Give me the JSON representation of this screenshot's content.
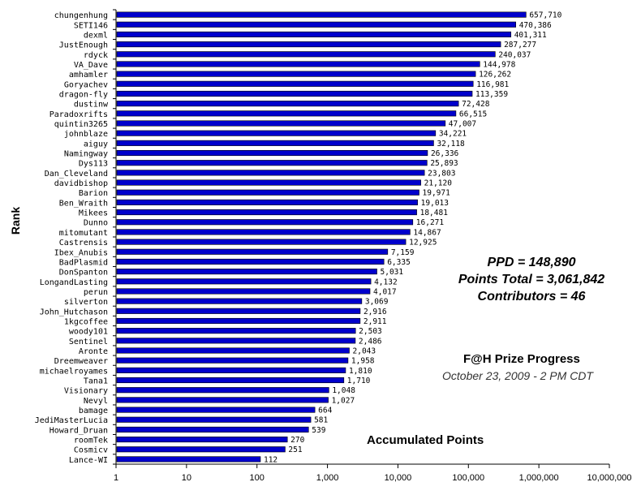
{
  "chart_data": {
    "type": "bar",
    "orientation": "horizontal",
    "x_scale": "log",
    "xlim": [
      1,
      10000000
    ],
    "x_ticks": [
      "1",
      "10",
      "100",
      "1,000",
      "10,000",
      "100,000",
      "1,000,000",
      "10,000,000"
    ],
    "ylabel": "Rank",
    "xlabel": "Accumulated Points",
    "bar_color": "#0000cc",
    "categories": [
      "chungenhung",
      "SETI146",
      "dexml",
      "JustEnough",
      "rdyck",
      "VA_Dave",
      "amhamler",
      "Goryachev",
      "dragon-fly",
      "dustinw",
      "Paradoxrifts",
      "quintin3265",
      "johnblaze",
      "aiguy",
      "Namingway",
      "Dys113",
      "Dan_Cleveland",
      "davidbishop",
      "Barion",
      "Ben_Wraith",
      "Mikees",
      "Dunno",
      "mitomutant",
      "Castrensis",
      "Ibex_Anubis",
      "BadPlasmid",
      "DonSpanton",
      "LongandLasting",
      "perun",
      "silverton",
      "John_Hutchason",
      "1kgcoffee",
      "woody101",
      "Sentinel",
      "Aronte",
      "Dreemweaver",
      "michaelroyames",
      "Tana1",
      "Visionary",
      "Nevyl",
      "bamage",
      "JediMasterLucia",
      "Howard_Druan",
      "roomTek",
      "Cosmicv",
      "Lance-WI"
    ],
    "values": [
      657710,
      470386,
      401311,
      287277,
      240037,
      144978,
      126262,
      116981,
      113359,
      72428,
      66515,
      47007,
      34221,
      32118,
      26336,
      25893,
      23803,
      21120,
      19971,
      19013,
      18481,
      16271,
      14867,
      12925,
      7159,
      6335,
      5031,
      4132,
      4017,
      3069,
      2916,
      2911,
      2503,
      2486,
      2043,
      1958,
      1810,
      1710,
      1048,
      1027,
      664,
      581,
      539,
      270,
      251,
      112
    ],
    "value_labels": [
      "657,710",
      "470,386",
      "401,311",
      "287,277",
      "240,037",
      "144,978",
      "126,262",
      "116,981",
      "113,359",
      "72,428",
      "66,515",
      "47,007",
      "34,221",
      "32,118",
      "26,336",
      "25,893",
      "23,803",
      "21,120",
      "19,971",
      "19,013",
      "18,481",
      "16,271",
      "14,867",
      "12,925",
      "7,159",
      "6,335",
      "5,031",
      "4,132",
      "4,017",
      "3,069",
      "2,916",
      "2,911",
      "2,503",
      "2,486",
      "2,043",
      "1,958",
      "1,810",
      "1,710",
      "1,048",
      "1,027",
      "664",
      "581",
      "539",
      "270",
      "251",
      "112"
    ]
  },
  "annotations": {
    "ppd": "PPD = 148,890",
    "points_total": "Points Total = 3,061,842",
    "contributors": "Contributors = 46",
    "prize_title": "F@H Prize Progress",
    "prize_date": "October 23, 2009 - 2 PM CDT"
  }
}
